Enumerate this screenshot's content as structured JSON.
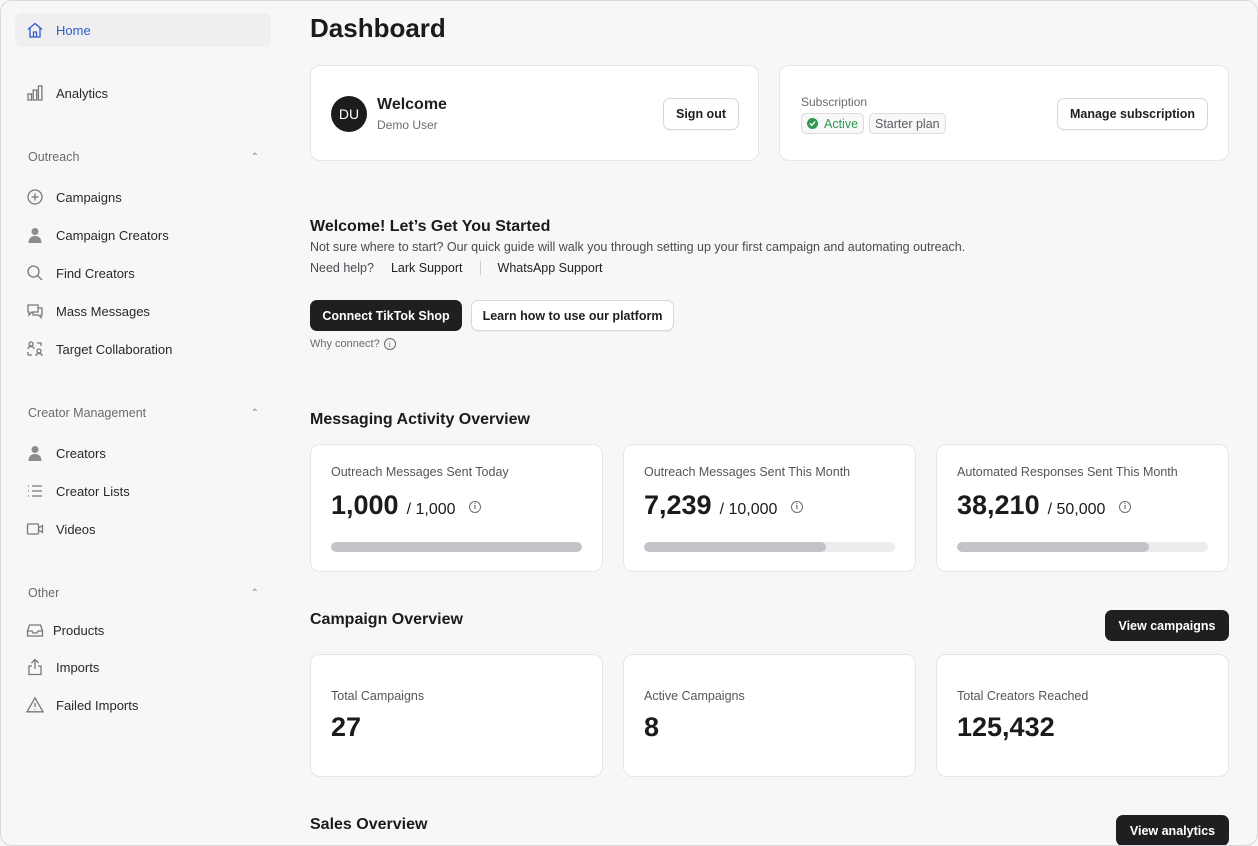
{
  "sidebar": {
    "home": "Home",
    "analytics": "Analytics",
    "sections": [
      {
        "title": "Outreach",
        "items": [
          "Campaigns",
          "Campaign Creators",
          "Find Creators",
          "Mass Messages",
          "Target Collaboration"
        ]
      },
      {
        "title": "Creator Management",
        "items": [
          "Creators",
          "Creator Lists",
          "Videos"
        ]
      },
      {
        "title": "Other",
        "items": [
          "Products",
          "Imports",
          "Failed Imports"
        ]
      }
    ]
  },
  "main": {
    "title": "Dashboard",
    "welcome_card": {
      "avatar_initials": "DU",
      "heading": "Welcome",
      "user_name": "Demo User",
      "sign_out": "Sign out"
    },
    "subscription_card": {
      "label": "Subscription",
      "status": "Active",
      "plan": "Starter plan",
      "manage": "Manage subscription"
    },
    "getting_started": {
      "heading": "Welcome! Let’s Get You Started",
      "description": "Not sure where to start? Our quick guide will walk you through setting up your first campaign and automating outreach.",
      "help_label": "Need help?",
      "lark": "Lark Support",
      "whatsapp": "WhatsApp Support",
      "connect_button": "Connect TikTok Shop",
      "learn_button": "Learn how to use our platform",
      "why_connect": "Why connect?"
    },
    "messaging": {
      "heading": "Messaging Activity Overview",
      "cards": [
        {
          "label": "Outreach Messages Sent Today",
          "value": "1,000",
          "limit": "/ 1,000",
          "progress": 1.0
        },
        {
          "label": "Outreach Messages Sent This Month",
          "value": "7,239",
          "limit": "/ 10,000",
          "progress": 0.7239
        },
        {
          "label": "Automated Responses Sent This Month",
          "value": "38,210",
          "limit": "/ 50,000",
          "progress": 0.7642
        }
      ]
    },
    "campaign": {
      "heading": "Campaign Overview",
      "button": "View campaigns",
      "cards": [
        {
          "label": "Total Campaigns",
          "value": "27"
        },
        {
          "label": "Active Campaigns",
          "value": "8"
        },
        {
          "label": "Total Creators Reached",
          "value": "125,432"
        }
      ]
    },
    "sales": {
      "heading": "Sales Overview",
      "button": "View analytics"
    }
  },
  "colors": {
    "accent": "#2d5cc9",
    "active_green": "#2e9a4f",
    "dark_button": "#1f1f22"
  }
}
